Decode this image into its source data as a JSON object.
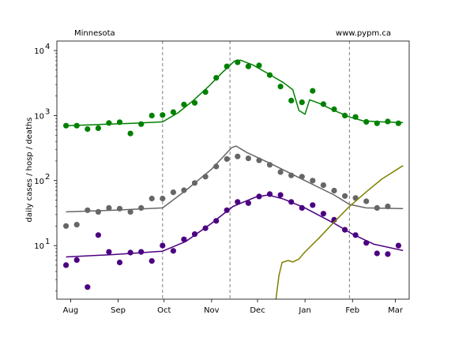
{
  "chart_data": {
    "type": "scatter",
    "region_label": "Minnesota",
    "source_label": "www.pypm.ca",
    "ylabel": "daily cases / hosp / deaths",
    "yscale": "log",
    "ylim": [
      1.5,
      14000
    ],
    "xlim": [
      "2020-07-23",
      "2021-03-10"
    ],
    "y_ticks": [
      {
        "value": 10,
        "base": "10",
        "exp": "1"
      },
      {
        "value": 100,
        "base": "10",
        "exp": "2"
      },
      {
        "value": 1000,
        "base": "10",
        "exp": "3"
      },
      {
        "value": 10000,
        "base": "10",
        "exp": "4"
      }
    ],
    "x_ticks": [
      {
        "date": "2020-08-01",
        "label": "Aug"
      },
      {
        "date": "2020-09-01",
        "label": "Sep"
      },
      {
        "date": "2020-10-01",
        "label": "Oct"
      },
      {
        "date": "2020-11-01",
        "label": "Nov"
      },
      {
        "date": "2020-12-01",
        "label": "Dec"
      },
      {
        "date": "2021-01-01",
        "label": "Jan"
      },
      {
        "date": "2021-02-01",
        "label": "Feb"
      },
      {
        "date": "2021-03-01",
        "label": "Mar"
      }
    ],
    "vlines": [
      "2020-09-30",
      "2020-11-13",
      "2021-01-30"
    ],
    "series": [
      {
        "kind": "cases",
        "color": "#008000",
        "points": [
          [
            "2020-07-29",
            700
          ],
          [
            "2020-08-05",
            700
          ],
          [
            "2020-08-12",
            620
          ],
          [
            "2020-08-19",
            640
          ],
          [
            "2020-08-26",
            770
          ],
          [
            "2020-09-02",
            790
          ],
          [
            "2020-09-09",
            530
          ],
          [
            "2020-09-16",
            740
          ],
          [
            "2020-09-23",
            1000
          ],
          [
            "2020-09-30",
            1020
          ],
          [
            "2020-10-07",
            1130
          ],
          [
            "2020-10-14",
            1480
          ],
          [
            "2020-10-21",
            1570
          ],
          [
            "2020-10-28",
            2300
          ],
          [
            "2020-11-04",
            3800
          ],
          [
            "2020-11-11",
            5700
          ],
          [
            "2020-11-18",
            6600
          ],
          [
            "2020-11-25",
            5700
          ],
          [
            "2020-12-02",
            5900
          ],
          [
            "2020-12-09",
            4200
          ],
          [
            "2020-12-16",
            2800
          ],
          [
            "2020-12-23",
            1700
          ],
          [
            "2020-12-30",
            1600
          ],
          [
            "2021-01-06",
            2400
          ],
          [
            "2021-01-13",
            1500
          ],
          [
            "2021-01-20",
            1250
          ],
          [
            "2021-01-27",
            1000
          ],
          [
            "2021-02-03",
            950
          ],
          [
            "2021-02-10",
            800
          ],
          [
            "2021-02-17",
            760
          ],
          [
            "2021-02-24",
            810
          ],
          [
            "2021-03-03",
            760
          ]
        ],
        "model": [
          [
            "2020-07-29",
            700
          ],
          [
            "2020-08-20",
            730
          ],
          [
            "2020-09-10",
            760
          ],
          [
            "2020-09-30",
            800
          ],
          [
            "2020-10-10",
            1100
          ],
          [
            "2020-10-20",
            1700
          ],
          [
            "2020-10-30",
            2800
          ],
          [
            "2020-11-08",
            4600
          ],
          [
            "2020-11-16",
            6900
          ],
          [
            "2020-11-20",
            7100
          ],
          [
            "2020-11-28",
            6000
          ],
          [
            "2020-12-08",
            4400
          ],
          [
            "2020-12-18",
            3200
          ],
          [
            "2020-12-24",
            2500
          ],
          [
            "2020-12-28",
            1200
          ],
          [
            "2021-01-01",
            1050
          ],
          [
            "2021-01-04",
            1750
          ],
          [
            "2021-01-10",
            1550
          ],
          [
            "2021-01-20",
            1200
          ],
          [
            "2021-01-30",
            950
          ],
          [
            "2021-02-08",
            830
          ],
          [
            "2021-02-20",
            800
          ],
          [
            "2021-03-06",
            780
          ]
        ]
      },
      {
        "kind": "hospitalizations",
        "color": "#666666",
        "points": [
          [
            "2020-07-29",
            20
          ],
          [
            "2020-08-05",
            21
          ],
          [
            "2020-08-12",
            35
          ],
          [
            "2020-08-19",
            33
          ],
          [
            "2020-08-26",
            38
          ],
          [
            "2020-09-02",
            37
          ],
          [
            "2020-09-09",
            33
          ],
          [
            "2020-09-16",
            38
          ],
          [
            "2020-09-23",
            53
          ],
          [
            "2020-09-30",
            53
          ],
          [
            "2020-10-07",
            66
          ],
          [
            "2020-10-14",
            71
          ],
          [
            "2020-10-21",
            92
          ],
          [
            "2020-10-28",
            115
          ],
          [
            "2020-11-04",
            165
          ],
          [
            "2020-11-11",
            215
          ],
          [
            "2020-11-18",
            235
          ],
          [
            "2020-11-25",
            220
          ],
          [
            "2020-12-02",
            205
          ],
          [
            "2020-12-09",
            175
          ],
          [
            "2020-12-16",
            135
          ],
          [
            "2020-12-23",
            120
          ],
          [
            "2020-12-30",
            115
          ],
          [
            "2021-01-06",
            100
          ],
          [
            "2021-01-13",
            85
          ],
          [
            "2021-01-20",
            70
          ],
          [
            "2021-01-27",
            58
          ],
          [
            "2021-02-03",
            54
          ],
          [
            "2021-02-10",
            48
          ],
          [
            "2021-02-17",
            38
          ],
          [
            "2021-02-24",
            40
          ]
        ],
        "model": [
          [
            "2020-07-29",
            33
          ],
          [
            "2020-08-30",
            35
          ],
          [
            "2020-09-30",
            38
          ],
          [
            "2020-10-15",
            70
          ],
          [
            "2020-11-01",
            150
          ],
          [
            "2020-11-14",
            320
          ],
          [
            "2020-11-17",
            340
          ],
          [
            "2020-11-24",
            270
          ],
          [
            "2020-12-10",
            180
          ],
          [
            "2021-01-01",
            100
          ],
          [
            "2021-01-20",
            60
          ],
          [
            "2021-01-30",
            43
          ],
          [
            "2021-02-10",
            38
          ],
          [
            "2021-03-06",
            37
          ]
        ]
      },
      {
        "kind": "deaths",
        "color": "#4b0082",
        "points": [
          [
            "2020-07-29",
            5
          ],
          [
            "2020-08-05",
            6
          ],
          [
            "2020-08-12",
            2.3
          ],
          [
            "2020-08-19",
            14.5
          ],
          [
            "2020-08-26",
            8
          ],
          [
            "2020-09-02",
            5.5
          ],
          [
            "2020-09-09",
            7.8
          ],
          [
            "2020-09-16",
            8
          ],
          [
            "2020-09-23",
            5.8
          ],
          [
            "2020-09-30",
            10
          ],
          [
            "2020-10-07",
            8.3
          ],
          [
            "2020-10-14",
            12.5
          ],
          [
            "2020-10-21",
            15
          ],
          [
            "2020-10-28",
            18.5
          ],
          [
            "2020-11-04",
            24
          ],
          [
            "2020-11-11",
            35
          ],
          [
            "2020-11-18",
            47
          ],
          [
            "2020-11-25",
            45
          ],
          [
            "2020-12-02",
            57
          ],
          [
            "2020-12-09",
            62
          ],
          [
            "2020-12-16",
            60
          ],
          [
            "2020-12-23",
            47
          ],
          [
            "2020-12-30",
            38
          ],
          [
            "2021-01-06",
            42
          ],
          [
            "2021-01-13",
            31
          ],
          [
            "2021-01-20",
            25
          ],
          [
            "2021-01-27",
            17.5
          ],
          [
            "2021-02-03",
            14.5
          ],
          [
            "2021-02-10",
            11
          ],
          [
            "2021-02-17",
            7.6
          ],
          [
            "2021-02-24",
            7.4
          ],
          [
            "2021-03-03",
            10
          ]
        ],
        "model": [
          [
            "2020-07-29",
            6.7
          ],
          [
            "2020-08-30",
            7.3
          ],
          [
            "2020-09-30",
            8.2
          ],
          [
            "2020-10-15",
            11.5
          ],
          [
            "2020-11-01",
            22
          ],
          [
            "2020-11-15",
            40
          ],
          [
            "2020-11-30",
            56
          ],
          [
            "2020-12-08",
            60
          ],
          [
            "2020-12-18",
            52
          ],
          [
            "2021-01-01",
            38
          ],
          [
            "2021-01-20",
            22
          ],
          [
            "2021-02-01",
            15
          ],
          [
            "2021-02-15",
            10.5
          ],
          [
            "2021-03-06",
            8.4
          ]
        ]
      },
      {
        "kind": "olive-model",
        "color": "#808000",
        "model": [
          [
            "2020-12-13",
            1.5
          ],
          [
            "2020-12-15",
            3.5
          ],
          [
            "2020-12-17",
            5.5
          ],
          [
            "2020-12-21",
            5.9
          ],
          [
            "2020-12-24",
            5.6
          ],
          [
            "2020-12-28",
            6.2
          ],
          [
            "2021-01-01",
            8
          ],
          [
            "2021-01-10",
            13
          ],
          [
            "2021-01-20",
            23
          ],
          [
            "2021-01-30",
            40
          ],
          [
            "2021-02-10",
            67
          ],
          [
            "2021-02-20",
            105
          ],
          [
            "2021-03-06",
            170
          ]
        ]
      }
    ]
  }
}
